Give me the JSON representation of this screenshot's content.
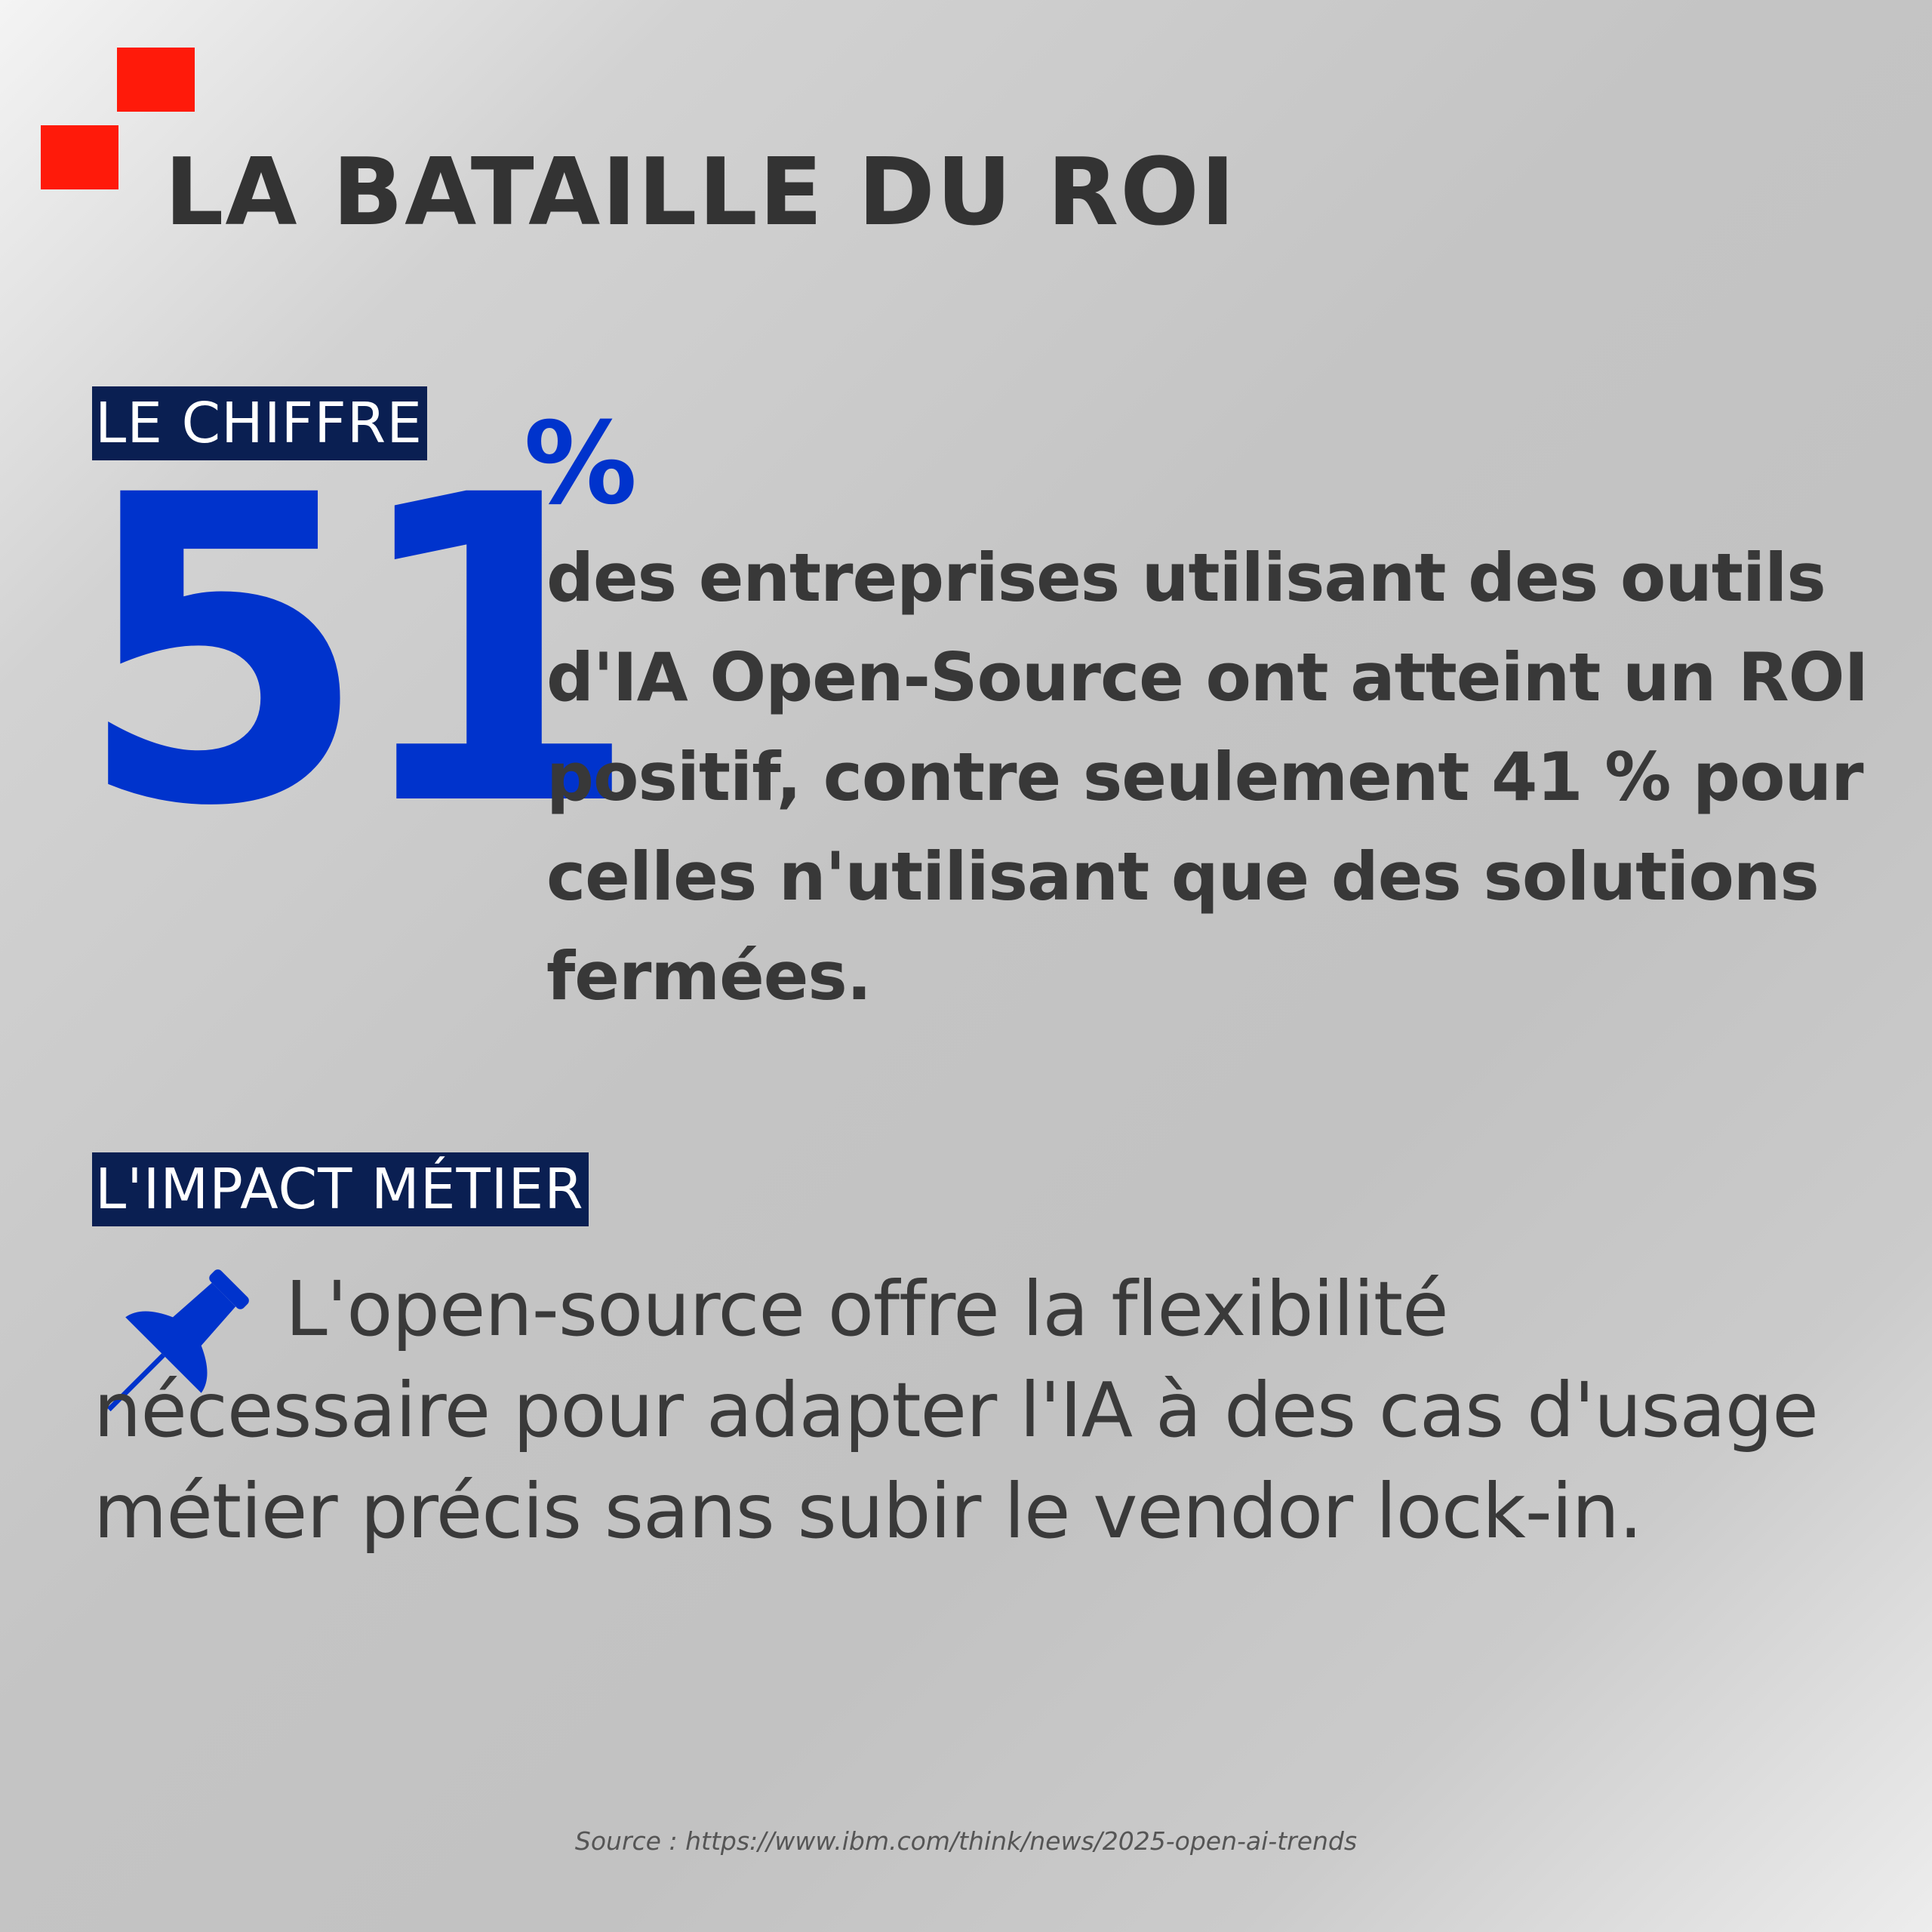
{
  "header": {
    "title": "LA BATAILLE DU ROI"
  },
  "figure_section": {
    "tag": "LE CHIFFRE",
    "number": "51",
    "unit": "%",
    "description": "des entreprises utilisant des outils d'IA Open-Source ont atteint un ROI positif, contre seulement 41 % pour celles n'utilisant que des solutions fermées."
  },
  "impact_section": {
    "tag": "L'IMPACT MÉTIER",
    "icon": "pushpin-icon",
    "text": "L'open-source offre la flexibilité nécessaire pour adapter l'IA à des cas d'usage métier précis sans subir le vendor lock-in."
  },
  "footer": {
    "source": "Source : https://www.ibm.com/think/news/2025-open-ai-trends"
  },
  "colors": {
    "accent_red": "#ff1a0a",
    "accent_blue": "#0033cc",
    "tag_background": "#0a1f52",
    "text_dark": "#333333"
  }
}
